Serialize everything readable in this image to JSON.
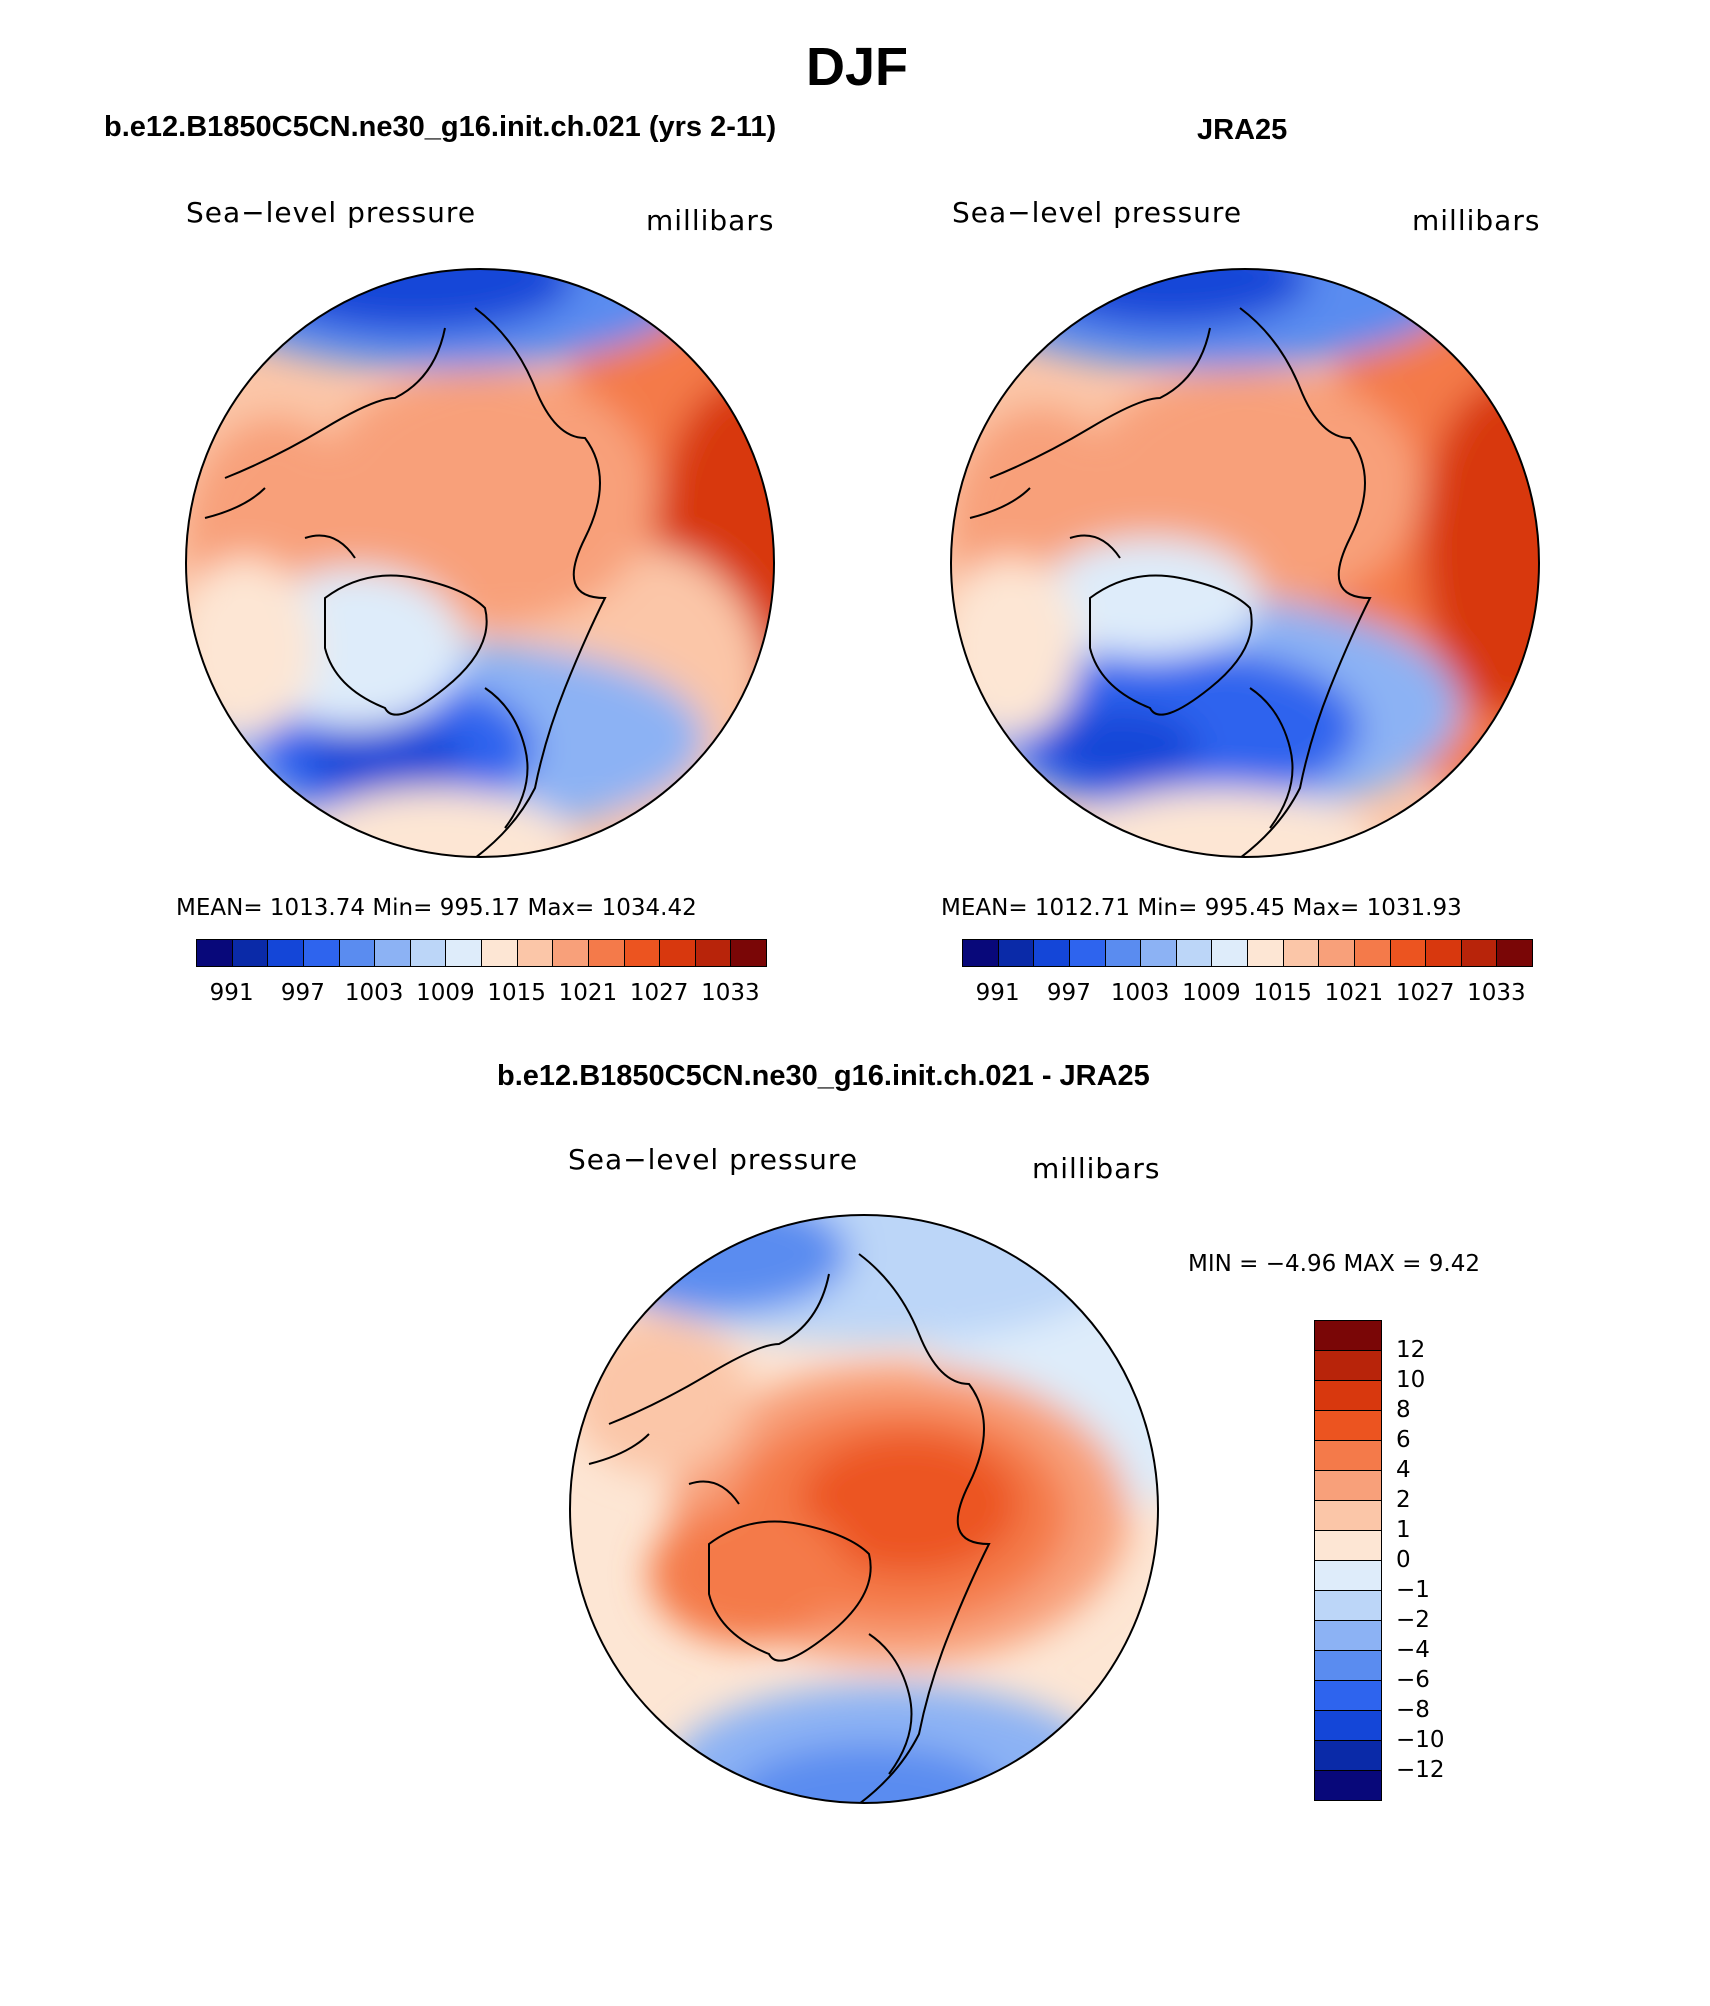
{
  "figure": {
    "title": "DJF",
    "panel1": {
      "title": "b.e12.B1850C5CN.ne30_g16.init.ch.021 (yrs 2-11)",
      "label_left": "Sea−level pressure",
      "label_right": "millibars",
      "stats": "MEAN=  1013.74   Min=  995.17   Max=  1034.42"
    },
    "panel2": {
      "title": "JRA25",
      "label_left": "Sea−level pressure",
      "label_right": "millibars",
      "stats": "MEAN=  1012.71   Min=  995.45   Max=  1031.93"
    },
    "panel3": {
      "title": "b.e12.B1850C5CN.ne30_g16.init.ch.021 - JRA25",
      "label_left": "Sea−level pressure",
      "label_right": "millibars",
      "stats": "MIN =   −4.96  MAX =     9.42"
    }
  },
  "chart_data": [
    {
      "type": "heatmap",
      "projection": "north-polar-stereographic",
      "title": "b.e12.B1850C5CN.ne30_g16.init.ch.021 (yrs 2-11)",
      "variable": "Sea-level pressure",
      "units": "millibars",
      "mean": 1013.74,
      "min": 995.17,
      "max": 1034.42,
      "levels": [
        991,
        994,
        997,
        1000,
        1003,
        1006,
        1009,
        1012,
        1015,
        1018,
        1021,
        1024,
        1027,
        1030,
        1033
      ],
      "colorbar_tick_labels": [
        "991",
        "997",
        "1003",
        "1009",
        "1015",
        "1021",
        "1027",
        "1033"
      ]
    },
    {
      "type": "heatmap",
      "projection": "north-polar-stereographic",
      "title": "JRA25",
      "variable": "Sea-level pressure",
      "units": "millibars",
      "mean": 1012.71,
      "min": 995.45,
      "max": 1031.93,
      "levels": [
        991,
        994,
        997,
        1000,
        1003,
        1006,
        1009,
        1012,
        1015,
        1018,
        1021,
        1024,
        1027,
        1030,
        1033
      ],
      "colorbar_tick_labels": [
        "991",
        "997",
        "1003",
        "1009",
        "1015",
        "1021",
        "1027",
        "1033"
      ]
    },
    {
      "type": "heatmap",
      "projection": "north-polar-stereographic",
      "title": "b.e12.B1850C5CN.ne30_g16.init.ch.021 - JRA25",
      "variable": "Sea-level pressure",
      "units": "millibars",
      "min": -4.96,
      "max": 9.42,
      "levels": [
        -12,
        -10,
        -8,
        -6,
        -4,
        -2,
        -1,
        0,
        1,
        2,
        4,
        6,
        8,
        10,
        12
      ],
      "colorbar_tick_labels": [
        "12",
        "10",
        "8",
        "6",
        "4",
        "2",
        "1",
        "0",
        "−1",
        "−2",
        "−4",
        "−6",
        "−8",
        "−10",
        "−12"
      ]
    }
  ],
  "colors": {
    "scale": [
      "#08087a",
      "#0a2aa8",
      "#1446d8",
      "#2e64ee",
      "#5a8cf0",
      "#8cb2f4",
      "#bcd6f8",
      "#deecfa",
      "#fde6d4",
      "#fbc6a8",
      "#f8a07a",
      "#f47a4a",
      "#ec5420",
      "#d8380e",
      "#b8240a",
      "#7a0606"
    ]
  }
}
